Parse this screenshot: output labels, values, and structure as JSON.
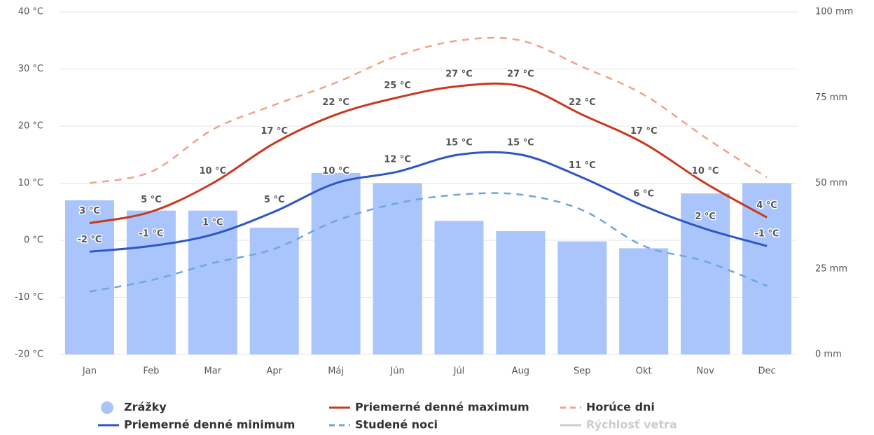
{
  "chart_data": {
    "type": "combo",
    "categories": [
      "Jan",
      "Feb",
      "Mar",
      "Apr",
      "Máj",
      "Jún",
      "Júl",
      "Aug",
      "Sep",
      "Okt",
      "Nov",
      "Dec"
    ],
    "ylim": [
      -20,
      40
    ],
    "yticks": [
      {
        "value": -20,
        "label": "-20 °C"
      },
      {
        "value": -10,
        "label": "-10 °C"
      },
      {
        "value": 0,
        "label": "0 °C"
      },
      {
        "value": 10,
        "label": "10 °C"
      },
      {
        "value": 20,
        "label": "20 °C"
      },
      {
        "value": 30,
        "label": "30 °C"
      },
      {
        "value": 40,
        "label": "40 °C"
      }
    ],
    "y2lim": [
      0,
      100
    ],
    "y2ticks": [
      {
        "value": 0,
        "label": "0 mm"
      },
      {
        "value": 25,
        "label": "25 mm"
      },
      {
        "value": 50,
        "label": "50 mm"
      },
      {
        "value": 75,
        "label": "75 mm"
      },
      {
        "value": 100,
        "label": "100 mm"
      }
    ],
    "grid": true,
    "series": [
      {
        "name": "Zrážky",
        "type": "bar",
        "axis": "y2",
        "color": "#a9c5fb",
        "values": [
          45,
          42,
          42,
          37,
          53,
          50,
          39,
          36,
          33,
          31,
          47,
          50
        ]
      },
      {
        "name": "Priemerné denné maximum",
        "type": "line",
        "color": "#c8391e",
        "values": [
          3,
          5,
          10,
          17,
          22,
          25,
          27,
          27,
          22,
          17,
          10,
          4
        ],
        "value_labels": [
          "3 °C",
          "5 °C",
          "10 °C",
          "17 °C",
          "22 °C",
          "25 °C",
          "27 °C",
          "27 °C",
          "22 °C",
          "17 °C",
          "10 °C",
          "4 °C"
        ]
      },
      {
        "name": "Horúce dni",
        "type": "line",
        "dashed": true,
        "color": "#f2a28e",
        "values": [
          10,
          12,
          19.4,
          23.7,
          27.6,
          32.3,
          35,
          35,
          30.4,
          25.5,
          18,
          11
        ]
      },
      {
        "name": "Priemerné denné minimum",
        "type": "line",
        "color": "#2f56c6",
        "values": [
          -2,
          -1,
          1,
          5,
          10,
          12,
          15,
          15,
          11,
          6,
          2,
          -1
        ],
        "value_labels": [
          "-2 °C",
          "-1 °C",
          "1 °C",
          "5 °C",
          "10 °C",
          "12 °C",
          "15 °C",
          "15 °C",
          "11 °C",
          "6 °C",
          "2 °C",
          "-1 °C"
        ]
      },
      {
        "name": "Studené noci",
        "type": "line",
        "dashed": true,
        "color": "#6ea7dd",
        "values": [
          -9,
          -7,
          -4,
          -1.5,
          3.4,
          6.5,
          8,
          8,
          5.3,
          -1,
          -3.7,
          -8
        ]
      }
    ],
    "inactive_legend": [
      {
        "name": "Rýchlosť vetra",
        "color": "#cccccc"
      }
    ]
  }
}
